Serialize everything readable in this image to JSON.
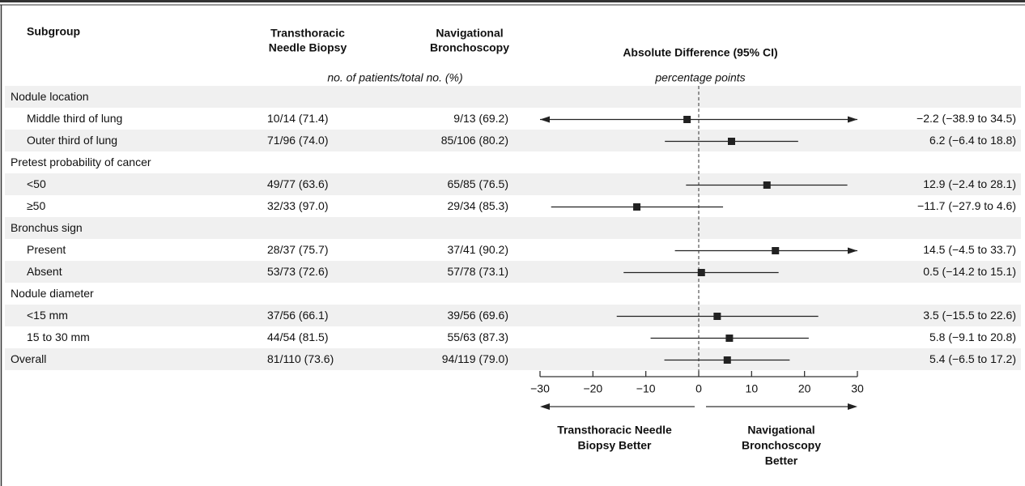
{
  "chart_data": {
    "type": "forest",
    "title": "Absolute Difference (95% CI)",
    "subtitle": "percentage points",
    "row_header": "Subgroup",
    "columns": [
      [
        "Transthoracic",
        "Needle Biopsy"
      ],
      [
        "Navigational",
        "Bronchoscopy"
      ]
    ],
    "column_note": "no. of patients/total no. (%)",
    "rows": [
      {
        "label": "Nodule location",
        "rows": [
          {
            "label": "Middle third of lung",
            "cells": [
              "10/14 (71.4)",
              "9/13 (69.2)"
            ],
            "value": -2.2,
            "ci": [
              -38.9,
              34.5
            ],
            "value_label": "−2.2 (−38.9 to 34.5)"
          },
          {
            "label": "Outer third of lung",
            "cells": [
              "71/96 (74.0)",
              "85/106 (80.2)"
            ],
            "value": 6.2,
            "ci": [
              -6.4,
              18.8
            ],
            "value_label": "6.2 (−6.4 to 18.8)"
          }
        ]
      },
      {
        "label": "Pretest probability of cancer",
        "rows": [
          {
            "label": "<50",
            "cells": [
              "49/77 (63.6)",
              "65/85 (76.5)"
            ],
            "value": 12.9,
            "ci": [
              -2.4,
              28.1
            ],
            "value_label": "12.9 (−2.4 to 28.1)"
          },
          {
            "label": "≥50",
            "cells": [
              "32/33 (97.0)",
              "29/34 (85.3)"
            ],
            "value": -11.7,
            "ci": [
              -27.9,
              4.6
            ],
            "value_label": "−11.7 (−27.9 to 4.6)"
          }
        ]
      },
      {
        "label": "Bronchus sign",
        "rows": [
          {
            "label": "Present",
            "cells": [
              "28/37 (75.7)",
              "37/41 (90.2)"
            ],
            "value": 14.5,
            "ci": [
              -4.5,
              33.7
            ],
            "value_label": "14.5 (−4.5 to 33.7)"
          },
          {
            "label": "Absent",
            "cells": [
              "53/73 (72.6)",
              "57/78 (73.1)"
            ],
            "value": 0.5,
            "ci": [
              -14.2,
              15.1
            ],
            "value_label": "0.5 (−14.2 to 15.1)"
          }
        ]
      },
      {
        "label": "Nodule diameter",
        "rows": [
          {
            "label": "<15 mm",
            "cells": [
              "37/56 (66.1)",
              "39/56 (69.6)"
            ],
            "value": 3.5,
            "ci": [
              -15.5,
              22.6
            ],
            "value_label": "3.5 (−15.5 to 22.6)"
          },
          {
            "label": "15 to 30 mm",
            "cells": [
              "44/54 (81.5)",
              "55/63 (87.3)"
            ],
            "value": 5.8,
            "ci": [
              -9.1,
              20.8
            ],
            "value_label": "5.8 (−9.1 to 20.8)"
          }
        ]
      },
      {
        "label": "Overall",
        "cells": [
          "81/110 (73.6)",
          "94/119 (79.0)"
        ],
        "value": 5.4,
        "ci": [
          -6.5,
          17.2
        ],
        "value_label": "5.4 (−6.5 to 17.2)"
      }
    ],
    "xlim": [
      -30,
      30
    ],
    "xticks": [
      {
        "value": -30,
        "label": "−30"
      },
      {
        "value": -20,
        "label": "−20"
      },
      {
        "value": -10,
        "label": "−10"
      },
      0,
      10,
      20,
      30
    ],
    "left_label": [
      "Transthoracic Needle",
      "Biopsy Better"
    ],
    "right_label": [
      "Navigational",
      "Bronchoscopy",
      "Better"
    ],
    "color": "#222222",
    "shading": "#f0f0f0"
  }
}
